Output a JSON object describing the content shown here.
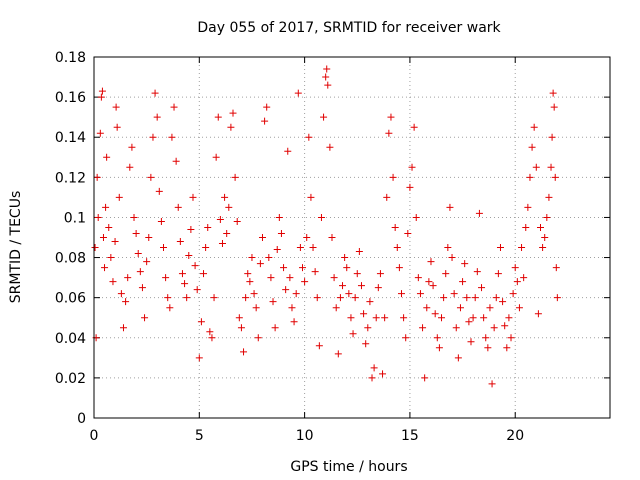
{
  "chart_data": {
    "type": "scatter",
    "title": "Day 055 of 2017, SRMTID for receiver wark",
    "xlabel": "GPS time / hours",
    "ylabel": "SRMTID / TECUs",
    "xlim": [
      0,
      24.5
    ],
    "ylim": [
      0,
      0.18
    ],
    "xticks": [
      0,
      5,
      10,
      15,
      20
    ],
    "xtick_labels": [
      "0",
      "5",
      "10",
      "15",
      "20"
    ],
    "yticks": [
      0,
      0.02,
      0.04,
      0.06,
      0.08,
      0.1,
      0.12,
      0.14,
      0.16,
      0.18
    ],
    "ytick_labels": [
      "0",
      "0.02",
      "0.04",
      "0.06",
      "0.08",
      "0.1",
      "0.12",
      "0.14",
      "0.16",
      "0.18"
    ],
    "grid": true,
    "marker": "+",
    "color": "#e00000",
    "series": [
      {
        "name": "",
        "points": [
          [
            0.05,
            0.085
          ],
          [
            0.1,
            0.04
          ],
          [
            0.15,
            0.12
          ],
          [
            0.2,
            0.1
          ],
          [
            0.3,
            0.142
          ],
          [
            0.35,
            0.16
          ],
          [
            0.4,
            0.163
          ],
          [
            0.45,
            0.09
          ],
          [
            0.5,
            0.075
          ],
          [
            0.55,
            0.105
          ],
          [
            0.6,
            0.13
          ],
          [
            0.7,
            0.095
          ],
          [
            0.8,
            0.08
          ],
          [
            0.9,
            0.068
          ],
          [
            1.0,
            0.088
          ],
          [
            1.05,
            0.155
          ],
          [
            1.1,
            0.145
          ],
          [
            1.2,
            0.11
          ],
          [
            1.3,
            0.062
          ],
          [
            1.4,
            0.045
          ],
          [
            1.5,
            0.058
          ],
          [
            1.6,
            0.07
          ],
          [
            1.7,
            0.125
          ],
          [
            1.8,
            0.135
          ],
          [
            1.9,
            0.1
          ],
          [
            2.0,
            0.092
          ],
          [
            2.1,
            0.082
          ],
          [
            2.2,
            0.073
          ],
          [
            2.3,
            0.065
          ],
          [
            2.4,
            0.05
          ],
          [
            2.5,
            0.078
          ],
          [
            2.6,
            0.09
          ],
          [
            2.7,
            0.12
          ],
          [
            2.8,
            0.14
          ],
          [
            2.9,
            0.162
          ],
          [
            3.0,
            0.15
          ],
          [
            3.1,
            0.113
          ],
          [
            3.2,
            0.098
          ],
          [
            3.3,
            0.085
          ],
          [
            3.4,
            0.07
          ],
          [
            3.5,
            0.06
          ],
          [
            3.6,
            0.055
          ],
          [
            3.7,
            0.14
          ],
          [
            3.8,
            0.155
          ],
          [
            3.9,
            0.128
          ],
          [
            4.0,
            0.105
          ],
          [
            4.1,
            0.088
          ],
          [
            4.2,
            0.072
          ],
          [
            4.3,
            0.067
          ],
          [
            4.4,
            0.06
          ],
          [
            4.5,
            0.081
          ],
          [
            4.6,
            0.094
          ],
          [
            4.7,
            0.11
          ],
          [
            4.8,
            0.076
          ],
          [
            4.9,
            0.064
          ],
          [
            5.0,
            0.03
          ],
          [
            5.1,
            0.048
          ],
          [
            5.2,
            0.072
          ],
          [
            5.3,
            0.085
          ],
          [
            5.4,
            0.095
          ],
          [
            5.5,
            0.043
          ],
          [
            5.6,
            0.04
          ],
          [
            5.7,
            0.06
          ],
          [
            5.8,
            0.13
          ],
          [
            5.9,
            0.15
          ],
          [
            6.0,
            0.099
          ],
          [
            6.1,
            0.087
          ],
          [
            6.2,
            0.11
          ],
          [
            6.3,
            0.092
          ],
          [
            6.4,
            0.105
          ],
          [
            6.5,
            0.145
          ],
          [
            6.6,
            0.152
          ],
          [
            6.7,
            0.12
          ],
          [
            6.8,
            0.098
          ],
          [
            6.9,
            0.05
          ],
          [
            7.0,
            0.045
          ],
          [
            7.1,
            0.033
          ],
          [
            7.2,
            0.06
          ],
          [
            7.3,
            0.072
          ],
          [
            7.4,
            0.068
          ],
          [
            7.5,
            0.08
          ],
          [
            7.6,
            0.062
          ],
          [
            7.7,
            0.055
          ],
          [
            7.8,
            0.04
          ],
          [
            7.9,
            0.077
          ],
          [
            8.0,
            0.09
          ],
          [
            8.1,
            0.148
          ],
          [
            8.2,
            0.155
          ],
          [
            8.3,
            0.08
          ],
          [
            8.4,
            0.07
          ],
          [
            8.5,
            0.058
          ],
          [
            8.6,
            0.045
          ],
          [
            8.7,
            0.084
          ],
          [
            8.8,
            0.1
          ],
          [
            8.9,
            0.092
          ],
          [
            9.0,
            0.075
          ],
          [
            9.1,
            0.064
          ],
          [
            9.2,
            0.133
          ],
          [
            9.3,
            0.07
          ],
          [
            9.4,
            0.055
          ],
          [
            9.5,
            0.048
          ],
          [
            9.6,
            0.062
          ],
          [
            9.7,
            0.162
          ],
          [
            9.8,
            0.085
          ],
          [
            9.9,
            0.075
          ],
          [
            10.0,
            0.068
          ],
          [
            10.1,
            0.09
          ],
          [
            10.2,
            0.14
          ],
          [
            10.3,
            0.11
          ],
          [
            10.4,
            0.085
          ],
          [
            10.5,
            0.073
          ],
          [
            10.6,
            0.06
          ],
          [
            10.7,
            0.036
          ],
          [
            10.8,
            0.1
          ],
          [
            10.9,
            0.15
          ],
          [
            11.0,
            0.17
          ],
          [
            11.05,
            0.174
          ],
          [
            11.1,
            0.166
          ],
          [
            11.2,
            0.135
          ],
          [
            11.3,
            0.09
          ],
          [
            11.4,
            0.07
          ],
          [
            11.5,
            0.055
          ],
          [
            11.6,
            0.032
          ],
          [
            11.7,
            0.06
          ],
          [
            11.8,
            0.066
          ],
          [
            11.9,
            0.08
          ],
          [
            12.0,
            0.075
          ],
          [
            12.1,
            0.062
          ],
          [
            12.2,
            0.05
          ],
          [
            12.3,
            0.042
          ],
          [
            12.4,
            0.06
          ],
          [
            12.5,
            0.072
          ],
          [
            12.6,
            0.083
          ],
          [
            12.7,
            0.066
          ],
          [
            12.8,
            0.052
          ],
          [
            12.9,
            0.037
          ],
          [
            13.0,
            0.045
          ],
          [
            13.1,
            0.058
          ],
          [
            13.2,
            0.02
          ],
          [
            13.3,
            0.025
          ],
          [
            13.4,
            0.05
          ],
          [
            13.5,
            0.065
          ],
          [
            13.6,
            0.072
          ],
          [
            13.7,
            0.022
          ],
          [
            13.8,
            0.05
          ],
          [
            13.9,
            0.11
          ],
          [
            14.0,
            0.142
          ],
          [
            14.1,
            0.15
          ],
          [
            14.2,
            0.12
          ],
          [
            14.3,
            0.095
          ],
          [
            14.4,
            0.085
          ],
          [
            14.5,
            0.075
          ],
          [
            14.6,
            0.062
          ],
          [
            14.7,
            0.05
          ],
          [
            14.8,
            0.04
          ],
          [
            14.9,
            0.092
          ],
          [
            15.0,
            0.115
          ],
          [
            15.1,
            0.125
          ],
          [
            15.2,
            0.145
          ],
          [
            15.3,
            0.1
          ],
          [
            15.4,
            0.07
          ],
          [
            15.5,
            0.062
          ],
          [
            15.6,
            0.045
          ],
          [
            15.7,
            0.02
          ],
          [
            15.8,
            0.055
          ],
          [
            15.9,
            0.068
          ],
          [
            16.0,
            0.078
          ],
          [
            16.1,
            0.066
          ],
          [
            16.2,
            0.052
          ],
          [
            16.3,
            0.04
          ],
          [
            16.4,
            0.035
          ],
          [
            16.5,
            0.05
          ],
          [
            16.6,
            0.06
          ],
          [
            16.7,
            0.072
          ],
          [
            16.8,
            0.085
          ],
          [
            16.9,
            0.105
          ],
          [
            17.0,
            0.08
          ],
          [
            17.1,
            0.062
          ],
          [
            17.2,
            0.045
          ],
          [
            17.3,
            0.03
          ],
          [
            17.4,
            0.055
          ],
          [
            17.5,
            0.068
          ],
          [
            17.6,
            0.077
          ],
          [
            17.7,
            0.06
          ],
          [
            17.8,
            0.048
          ],
          [
            17.9,
            0.038
          ],
          [
            18.0,
            0.05
          ],
          [
            18.1,
            0.06
          ],
          [
            18.2,
            0.073
          ],
          [
            18.3,
            0.102
          ],
          [
            18.4,
            0.065
          ],
          [
            18.5,
            0.05
          ],
          [
            18.6,
            0.04
          ],
          [
            18.7,
            0.035
          ],
          [
            18.8,
            0.055
          ],
          [
            18.9,
            0.017
          ],
          [
            19.0,
            0.045
          ],
          [
            19.1,
            0.06
          ],
          [
            19.2,
            0.072
          ],
          [
            19.3,
            0.085
          ],
          [
            19.4,
            0.058
          ],
          [
            19.5,
            0.046
          ],
          [
            19.6,
            0.035
          ],
          [
            19.7,
            0.05
          ],
          [
            19.8,
            0.04
          ],
          [
            19.9,
            0.062
          ],
          [
            20.0,
            0.075
          ],
          [
            20.1,
            0.068
          ],
          [
            20.2,
            0.055
          ],
          [
            20.3,
            0.085
          ],
          [
            20.4,
            0.07
          ],
          [
            20.5,
            0.095
          ],
          [
            20.6,
            0.105
          ],
          [
            20.7,
            0.12
          ],
          [
            20.8,
            0.135
          ],
          [
            20.9,
            0.145
          ],
          [
            21.0,
            0.125
          ],
          [
            21.1,
            0.052
          ],
          [
            21.2,
            0.095
          ],
          [
            21.3,
            0.085
          ],
          [
            21.4,
            0.09
          ],
          [
            21.5,
            0.1
          ],
          [
            21.6,
            0.11
          ],
          [
            21.7,
            0.125
          ],
          [
            21.75,
            0.14
          ],
          [
            21.8,
            0.162
          ],
          [
            21.85,
            0.155
          ],
          [
            21.9,
            0.12
          ],
          [
            21.95,
            0.075
          ],
          [
            22.0,
            0.06
          ]
        ]
      }
    ]
  }
}
